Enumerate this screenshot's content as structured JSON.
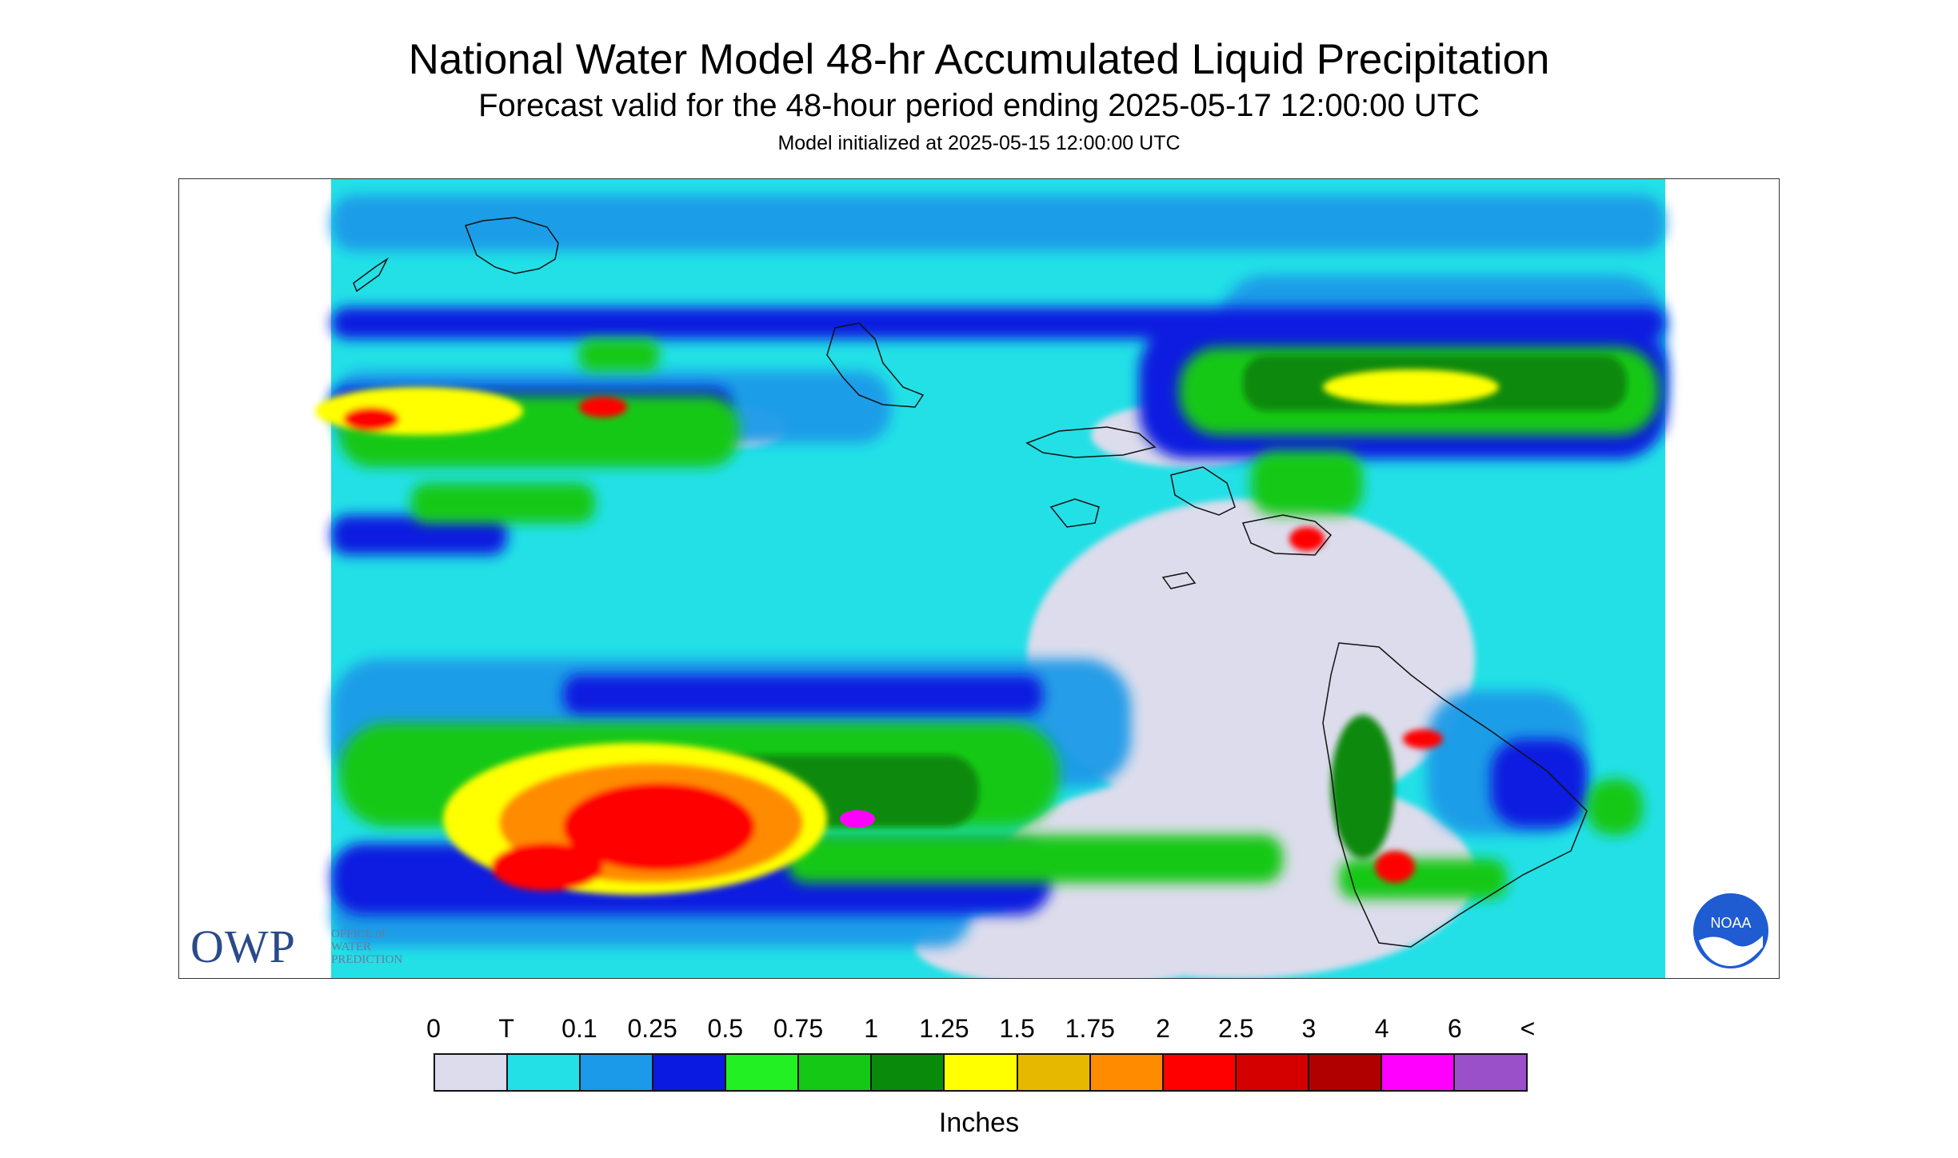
{
  "header": {
    "title": "National Water Model 48-hr Accumulated Liquid Precipitation",
    "subtitle": "Forecast valid for the 48-hour period ending 2025-05-17 12:00:00 UTC",
    "init": "Model initialized at 2025-05-15 12:00:00 UTC"
  },
  "map": {
    "region": "Hawaiian Islands",
    "branding": {
      "owp_logo": "OWP",
      "owp_sub": "OFFICE of\nWATER\nPREDICTION",
      "noaa_label": "NOAA"
    }
  },
  "legend": {
    "units": "Inches",
    "ticks": [
      "0",
      "T",
      "0.1",
      "0.25",
      "0.5",
      "0.75",
      "1",
      "1.25",
      "1.5",
      "1.75",
      "2",
      "2.5",
      "3",
      "4",
      "6",
      "<"
    ],
    "colors": [
      "#dcdcec",
      "#22e0e6",
      "#1a9ae8",
      "#0a1ae0",
      "#22f022",
      "#16c816",
      "#0a8a0a",
      "#ffff00",
      "#e6b800",
      "#ff8c00",
      "#ff0000",
      "#d40000",
      "#b00000",
      "#ff00ff",
      "#9a50c8"
    ]
  }
}
